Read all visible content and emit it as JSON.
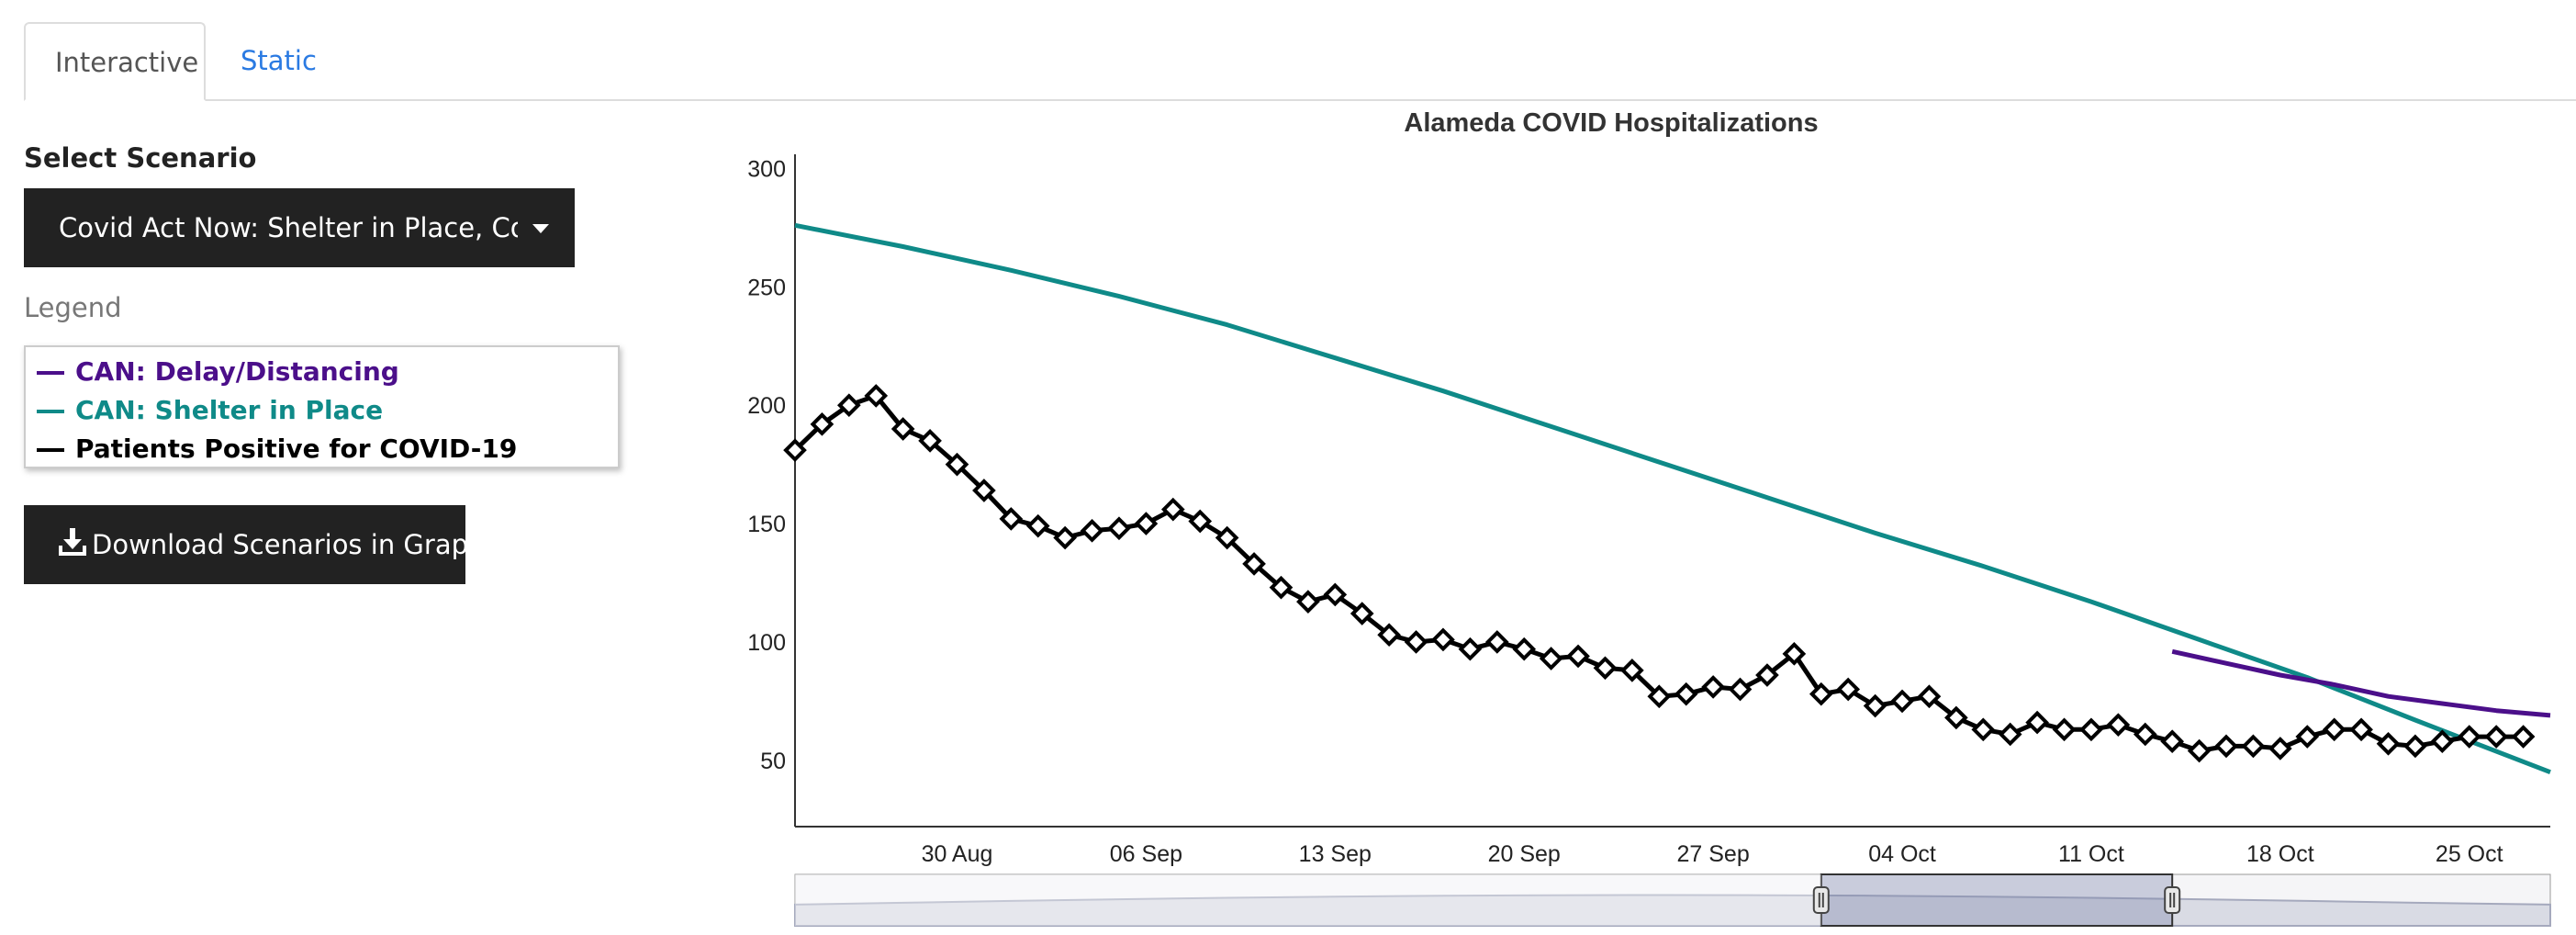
{
  "tabs": [
    {
      "label": "Interactive",
      "active": true
    },
    {
      "label": "Static",
      "active": false
    }
  ],
  "controls": {
    "select_label": "Select Scenario",
    "scenario_value": "Covid Act Now: Shelter in Place, Covid Act Now: Delay/Distancing",
    "legend_label": "Legend",
    "download_label": "Download Scenarios in Graph",
    "download_icon": "download-icon"
  },
  "legend": [
    {
      "label": "CAN: Delay/Distancing",
      "color": "#4b0f8a"
    },
    {
      "label": "CAN: Shelter in Place",
      "color": "#0f8a88"
    },
    {
      "label": "Patients Positive for COVID-19",
      "color": "#000000"
    }
  ],
  "chart_data": {
    "type": "line",
    "title": "Alameda COVID Hospitalizations",
    "xlabel": "",
    "ylabel": "",
    "x_range": [
      "2020-08-24",
      "2020-10-28"
    ],
    "ylim": [
      22,
      306
    ],
    "y_ticks": [
      50,
      100,
      150,
      200,
      250,
      300
    ],
    "x_ticks": [
      {
        "date": "2020-08-30",
        "label": "30 Aug"
      },
      {
        "date": "2020-09-06",
        "label": "06 Sep"
      },
      {
        "date": "2020-09-13",
        "label": "13 Sep"
      },
      {
        "date": "2020-09-20",
        "label": "20 Sep"
      },
      {
        "date": "2020-09-27",
        "label": "27 Sep"
      },
      {
        "date": "2020-10-04",
        "label": "04 Oct"
      },
      {
        "date": "2020-10-11",
        "label": "11 Oct"
      },
      {
        "date": "2020-10-18",
        "label": "18 Oct"
      },
      {
        "date": "2020-10-25",
        "label": "25 Oct"
      }
    ],
    "grid": false,
    "legend_position": "left panel",
    "range_selector": {
      "start": "2020-08-24",
      "end": "2020-10-28",
      "window_start": "2020-10-01",
      "window_end": "2020-10-14"
    },
    "series": [
      {
        "name": "CAN: Delay/Distancing",
        "color": "#4b0f8a",
        "x": [
          "2020-10-14",
          "2020-10-16",
          "2020-10-18",
          "2020-10-20",
          "2020-10-22",
          "2020-10-24",
          "2020-10-26",
          "2020-10-28"
        ],
        "y": [
          96,
          91,
          86,
          82,
          77,
          74,
          71,
          69
        ]
      },
      {
        "name": "CAN: Shelter in Place",
        "color": "#0f8a88",
        "x": [
          "2020-08-24",
          "2020-08-28",
          "2020-09-01",
          "2020-09-05",
          "2020-09-09",
          "2020-09-13",
          "2020-09-17",
          "2020-09-21",
          "2020-09-25",
          "2020-09-29",
          "2020-10-03",
          "2020-10-07",
          "2020-10-11",
          "2020-10-15",
          "2020-10-19",
          "2020-10-23",
          "2020-10-28"
        ],
        "y": [
          276,
          267,
          257,
          246,
          234,
          220,
          206,
          191,
          176,
          161,
          146,
          132,
          117,
          101,
          85,
          67,
          45
        ]
      },
      {
        "name": "Patients Positive for COVID-19",
        "color": "#000000",
        "x": [
          "2020-08-24",
          "2020-08-25",
          "2020-08-26",
          "2020-08-27",
          "2020-08-28",
          "2020-08-29",
          "2020-08-30",
          "2020-08-31",
          "2020-09-01",
          "2020-09-02",
          "2020-09-03",
          "2020-09-04",
          "2020-09-05",
          "2020-09-06",
          "2020-09-07",
          "2020-09-08",
          "2020-09-09",
          "2020-09-10",
          "2020-09-11",
          "2020-09-12",
          "2020-09-13",
          "2020-09-14",
          "2020-09-15",
          "2020-09-16",
          "2020-09-17",
          "2020-09-18",
          "2020-09-19",
          "2020-09-20",
          "2020-09-21",
          "2020-09-22",
          "2020-09-23",
          "2020-09-24",
          "2020-09-25",
          "2020-09-26",
          "2020-09-27",
          "2020-09-28",
          "2020-09-29",
          "2020-09-30",
          "2020-10-01",
          "2020-10-02",
          "2020-10-03",
          "2020-10-04",
          "2020-10-05",
          "2020-10-06",
          "2020-10-07",
          "2020-10-08",
          "2020-10-09",
          "2020-10-10",
          "2020-10-11",
          "2020-10-12",
          "2020-10-13",
          "2020-10-14",
          "2020-10-15",
          "2020-10-16",
          "2020-10-17",
          "2020-10-18",
          "2020-10-19",
          "2020-10-20",
          "2020-10-21",
          "2020-10-22",
          "2020-10-23",
          "2020-10-24",
          "2020-10-25",
          "2020-10-26",
          "2020-10-27"
        ],
        "y": [
          181,
          192,
          200,
          204,
          190,
          185,
          175,
          164,
          152,
          149,
          144,
          147,
          148,
          150,
          156,
          151,
          144,
          133,
          123,
          117,
          120,
          112,
          103,
          100,
          101,
          97,
          100,
          97,
          93,
          94,
          89,
          88,
          77,
          78,
          81,
          80,
          86,
          95,
          78,
          80,
          73,
          75,
          77,
          68,
          63,
          61,
          66,
          63,
          63,
          65,
          61,
          58,
          54,
          56,
          56,
          55,
          60,
          63,
          63,
          57,
          56,
          58,
          60,
          60,
          60
        ]
      }
    ]
  }
}
